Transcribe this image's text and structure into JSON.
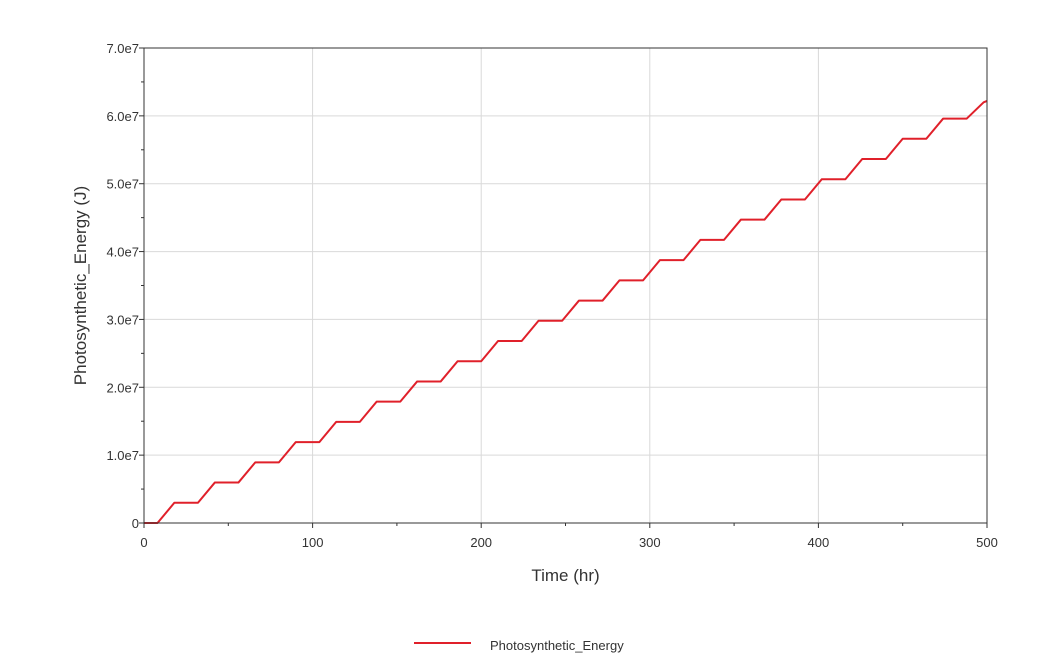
{
  "chart_data": {
    "type": "line",
    "title": "",
    "xlabel": "Time (hr)",
    "ylabel": "Photosynthetic_Energy (J)",
    "xlim": [
      0,
      500
    ],
    "ylim": [
      0,
      70000000
    ],
    "x_ticks": [
      0,
      100,
      200,
      300,
      400,
      500
    ],
    "x_tick_labels": [
      "0",
      "100",
      "200",
      "300",
      "400",
      "500"
    ],
    "y_ticks": [
      0,
      10000000,
      20000000,
      30000000,
      40000000,
      50000000,
      60000000,
      70000000
    ],
    "y_tick_labels": [
      "0",
      "1.0e7",
      "2.0e7",
      "3.0e7",
      "4.0e7",
      "5.0e7",
      "6.0e7",
      "7.0e7"
    ],
    "grid": true,
    "legend_position": "bottom-center",
    "series": [
      {
        "name": "Photosynthetic_Energy",
        "color": "#e0202a",
        "x": [
          0,
          8,
          18,
          32,
          42,
          56,
          66,
          80,
          90,
          104,
          114,
          128,
          138,
          152,
          162,
          176,
          186,
          200,
          210,
          224,
          234,
          248,
          258,
          272,
          282,
          296,
          306,
          320,
          330,
          344,
          354,
          368,
          378,
          392,
          402,
          416,
          426,
          440,
          450,
          464,
          474,
          488,
          498,
          500
        ],
        "y": [
          0,
          0,
          2980000,
          2980000,
          5960000,
          5960000,
          8940000,
          8940000,
          11920000,
          11920000,
          14900000,
          14900000,
          17880000,
          17880000,
          20860000,
          20860000,
          23840000,
          23840000,
          26820000,
          26820000,
          29800000,
          29800000,
          32780000,
          32780000,
          35760000,
          35760000,
          38740000,
          38740000,
          41720000,
          41720000,
          44700000,
          44700000,
          47680000,
          47680000,
          50660000,
          50660000,
          53640000,
          53640000,
          56620000,
          56620000,
          59600000,
          59600000,
          62000000,
          62200000
        ]
      }
    ]
  }
}
